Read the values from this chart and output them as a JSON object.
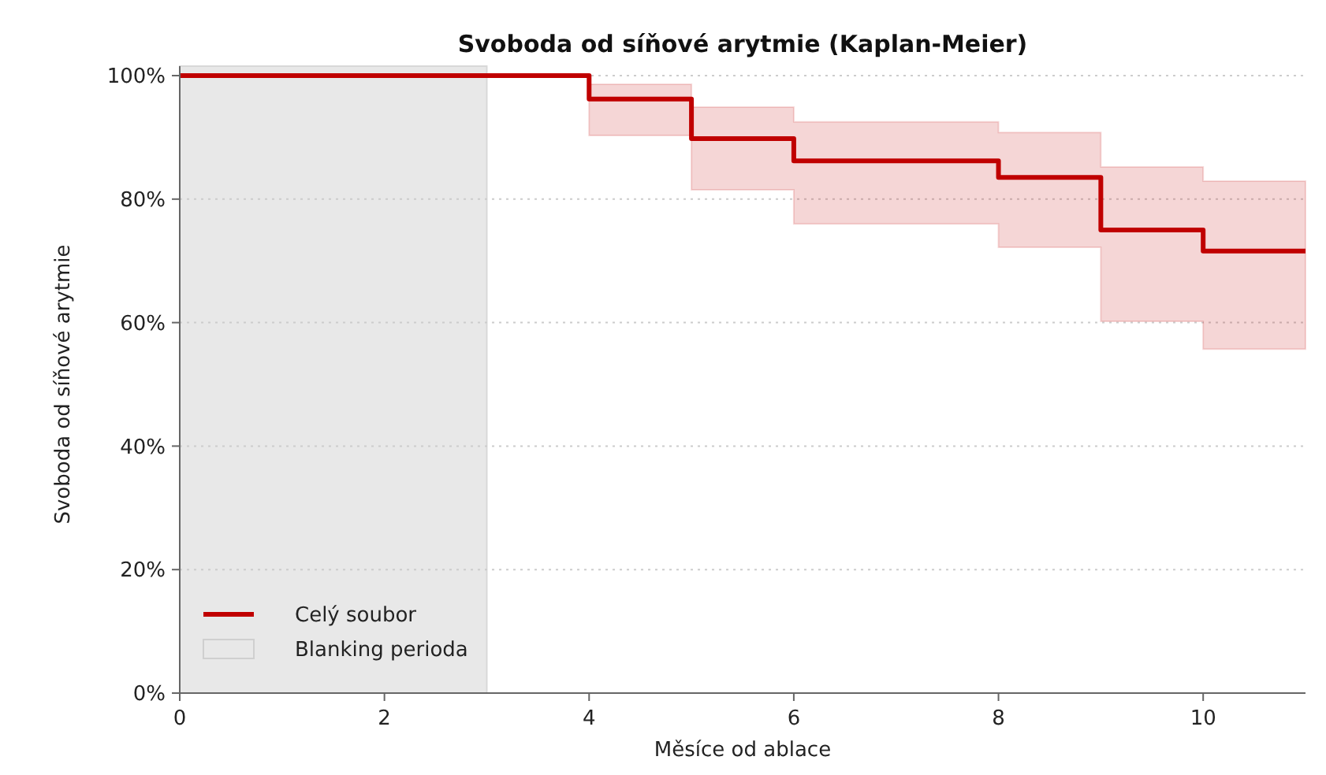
{
  "chart_data": {
    "type": "step",
    "title": "Svoboda od síňové arytmie (Kaplan-Meier)",
    "xlabel": "Měsíce od ablace",
    "ylabel": "Svoboda od síňové arytmie",
    "x": [
      0,
      4,
      5,
      6,
      8,
      9,
      10,
      11
    ],
    "series": [
      {
        "name": "Celý soubor",
        "color": "#c00000",
        "values": [
          100,
          96.2,
          89.8,
          86.2,
          83.5,
          75,
          71.6,
          71.6
        ],
        "lower": [
          null,
          90.3,
          81.5,
          76,
          72.2,
          60.2,
          55.7,
          55.7
        ],
        "upper": [
          null,
          98.6,
          94.9,
          92.5,
          90.8,
          85.2,
          82.9,
          82.9
        ]
      }
    ],
    "bands": [
      {
        "axis": "x",
        "from": 0,
        "to": 3,
        "label": "Blanking perioda",
        "color": "#e8e8e8"
      }
    ],
    "xlim": [
      0,
      11
    ],
    "xticks": [
      0,
      2,
      4,
      6,
      8,
      10
    ],
    "ylim": [
      0,
      100
    ],
    "yticks": [
      {
        "value": 0,
        "label": "0%"
      },
      {
        "value": 20,
        "label": "20%"
      },
      {
        "value": 40,
        "label": "40%"
      },
      {
        "value": 60,
        "label": "60%"
      },
      {
        "value": 80,
        "label": "80%"
      },
      {
        "value": 100,
        "label": "100%"
      }
    ],
    "grid": "y",
    "legend": "bottom left",
    "line_style": "solid"
  }
}
